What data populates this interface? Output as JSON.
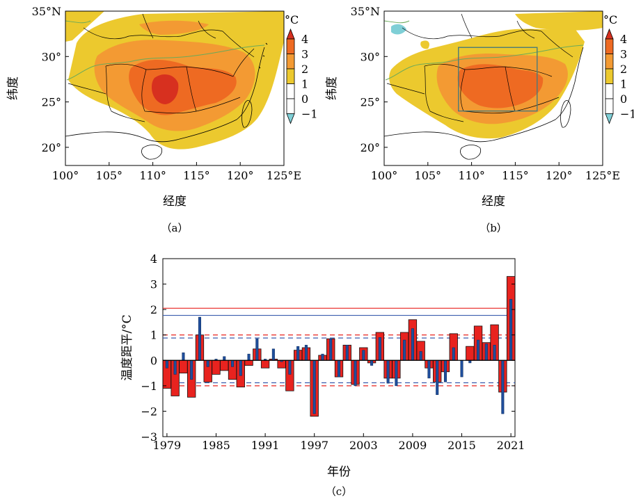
{
  "panels": {
    "a": {
      "caption": "（a）",
      "xlabel": "经度",
      "ylabel": "纬度",
      "lon_range": [
        100,
        125
      ],
      "lat_range": [
        18,
        35
      ],
      "xticks": [
        "100°",
        "105°",
        "110°",
        "115°",
        "120°",
        "125°E"
      ],
      "yticks": [
        "35°N",
        "30°",
        "25°",
        "20°"
      ]
    },
    "b": {
      "caption": "（b）",
      "xlabel": "经度",
      "ylabel": "纬度",
      "lon_range": [
        100,
        125
      ],
      "lat_range": [
        18,
        35
      ],
      "xticks": [
        "100°",
        "105°",
        "110°",
        "115°",
        "120°",
        "125°E"
      ],
      "yticks": [
        "35°N",
        "30°",
        "25°",
        "20°"
      ],
      "box": {
        "lon": [
          108.5,
          117.5
        ],
        "lat": [
          24,
          31
        ]
      }
    }
  },
  "colorbar": {
    "unit": "°C",
    "labels": [
      "4",
      "3",
      "2",
      "1",
      "0",
      "−1"
    ],
    "colors": {
      "top": "#d7301f",
      "3-4": "#ee6a22",
      "2-3": "#f39a33",
      "1-2": "#ecc92e",
      "0-1": "#ffffff",
      "-1-0": "#ffffff",
      "bottom": "#7fcfd6"
    }
  },
  "chart_data": {
    "type": "bar",
    "caption": "（c）",
    "xlabel": "年份",
    "ylabel": "温度距平/°C",
    "ylim": [
      -3,
      4
    ],
    "yticks": [
      "4",
      "3",
      "2",
      "1",
      "0",
      "−1",
      "−2",
      "−3"
    ],
    "xticks": [
      "1979",
      "1985",
      "1991",
      "1997",
      "2003",
      "2009",
      "2015",
      "2021"
    ],
    "years": [
      1979,
      1980,
      1981,
      1982,
      1983,
      1984,
      1985,
      1986,
      1987,
      1988,
      1989,
      1990,
      1991,
      1992,
      1993,
      1994,
      1995,
      1996,
      1997,
      1998,
      1999,
      2000,
      2001,
      2002,
      2003,
      2004,
      2005,
      2006,
      2007,
      2008,
      2009,
      2010,
      2011,
      2012,
      2013,
      2014,
      2015,
      2016,
      2017,
      2018,
      2019,
      2020,
      2021
    ],
    "series": [
      {
        "color": "#e8231f",
        "values": [
          -1.1,
          -1.4,
          -0.5,
          -1.45,
          1.0,
          -0.85,
          -0.55,
          -0.4,
          -0.75,
          -1.05,
          -0.2,
          0.45,
          -0.3,
          0.05,
          -0.3,
          -1.2,
          0.4,
          0.5,
          -2.2,
          0.2,
          0.85,
          -0.65,
          0.6,
          -0.95,
          0.5,
          -0.1,
          1.1,
          -0.7,
          -0.7,
          1.1,
          1.6,
          0.75,
          -0.3,
          -0.85,
          -0.45,
          1.05,
          0.0,
          0.55,
          1.35,
          0.7,
          1.4,
          -1.25,
          3.3
        ]
      },
      {
        "color": "#1f4e9c",
        "values": [
          -0.3,
          -0.55,
          0.3,
          -0.75,
          1.7,
          -0.25,
          0.05,
          0.15,
          -0.25,
          -0.6,
          0.25,
          0.85,
          0.05,
          0.45,
          -0.05,
          -0.55,
          0.55,
          0.6,
          -2.1,
          0.25,
          0.85,
          -0.65,
          0.6,
          -1.0,
          0.4,
          -0.2,
          0.9,
          -0.9,
          -1.0,
          0.8,
          1.25,
          0.35,
          -0.7,
          -1.35,
          -0.85,
          0.5,
          -0.65,
          -0.1,
          0.8,
          0.65,
          0.6,
          -2.1,
          2.4
        ]
      }
    ],
    "reference_lines": [
      {
        "color": "#e8231f",
        "style": "solid",
        "y": 2.05
      },
      {
        "color": "#e8231f",
        "style": "dashed",
        "y": 1.0
      },
      {
        "color": "#e8231f",
        "style": "dashed",
        "y": -1.0
      },
      {
        "color": "#3a5dae",
        "style": "solid",
        "y": 1.77
      },
      {
        "color": "#3a5dae",
        "style": "dashed",
        "y": 0.88
      },
      {
        "color": "#3a5dae",
        "style": "dashed",
        "y": -0.88
      }
    ],
    "grid": false
  }
}
